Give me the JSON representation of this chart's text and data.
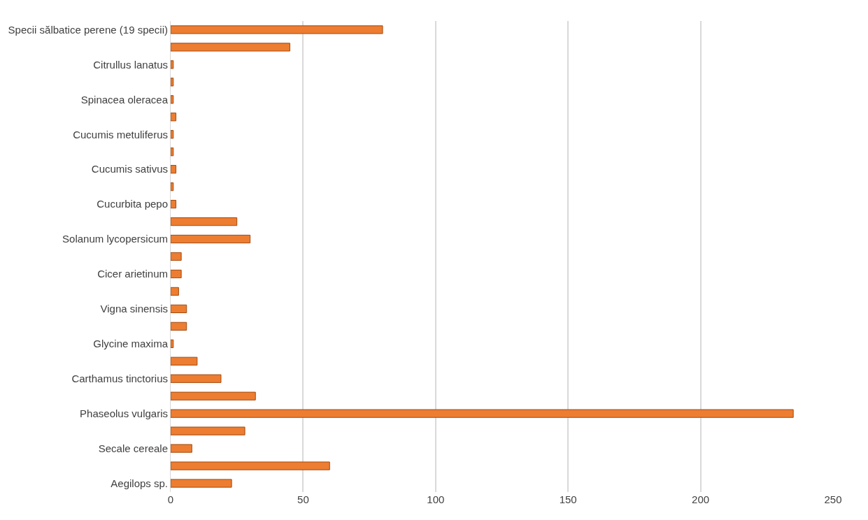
{
  "chart_data": {
    "type": "bar",
    "orientation": "horizontal",
    "categories": [
      "Specii sălbatice perene (19 specii)",
      null,
      "Citrullus lanatus",
      null,
      "Spinacea oleracea",
      null,
      "Cucumis metuliferus",
      null,
      "Cucumis sativus",
      null,
      "Cucurbita pepo",
      null,
      "Solanum lycopersicum",
      null,
      "Cicer arietinum",
      null,
      "Vigna sinensis",
      null,
      "Glycine maxima",
      null,
      "Carthamus tinctorius",
      null,
      "Phaseolus vulgaris",
      null,
      "Secale cereale",
      null,
      "Aegilops sp."
    ],
    "values": [
      80,
      45,
      1,
      1,
      1,
      2,
      1,
      1,
      2,
      1,
      2,
      25,
      30,
      4,
      4,
      3,
      6,
      6,
      1,
      10,
      19,
      32,
      235,
      28,
      8,
      60,
      23
    ],
    "color": "#ed7d31",
    "xlim": [
      0,
      250
    ],
    "xticks": [
      0,
      50,
      100,
      150,
      200,
      250
    ],
    "grid": "x"
  }
}
